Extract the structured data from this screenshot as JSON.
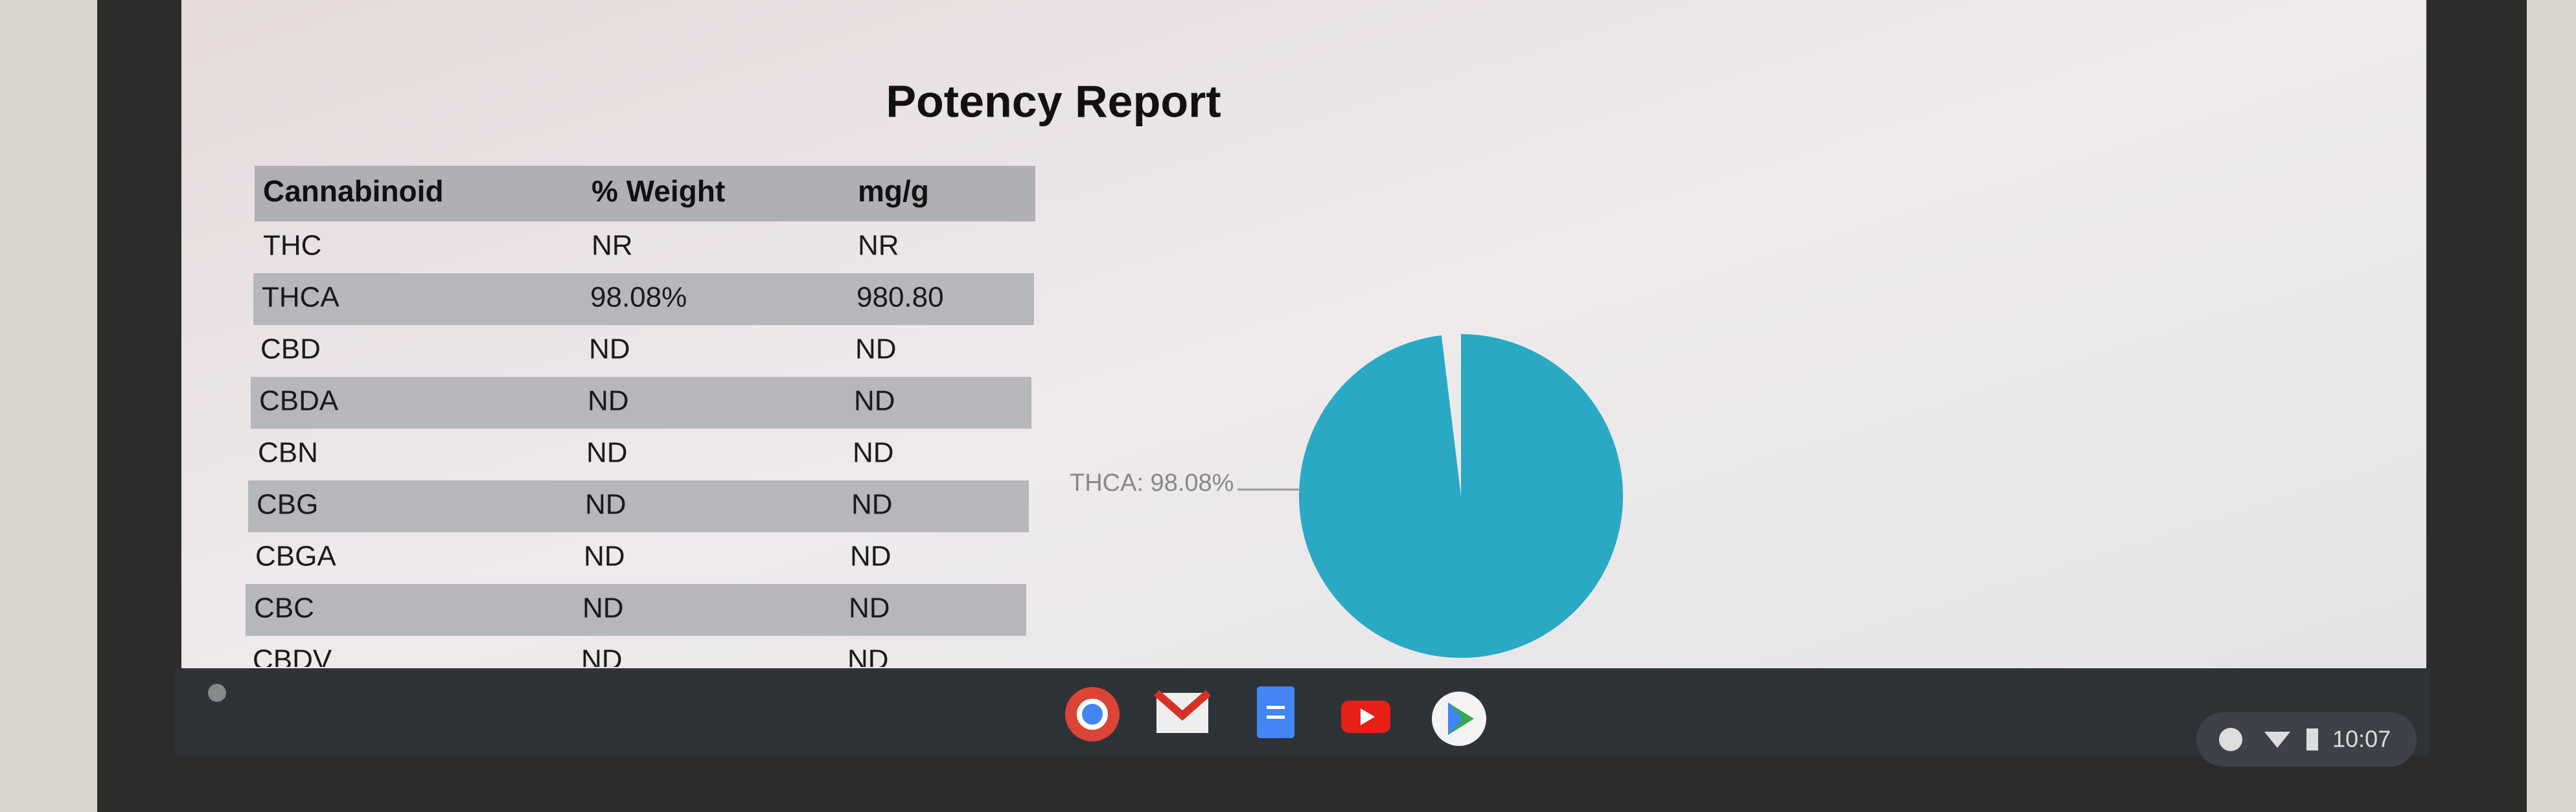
{
  "header": {
    "title": "Potency Report"
  },
  "table": {
    "columns": [
      "Cannabinoid",
      "% Weight",
      "mg/g"
    ],
    "rows": [
      [
        "THC",
        "NR",
        "NR"
      ],
      [
        "THCA",
        "98.08%",
        "980.80"
      ],
      [
        "CBD",
        "ND",
        "ND"
      ],
      [
        "CBDA",
        "ND",
        "ND"
      ],
      [
        "CBN",
        "ND",
        "ND"
      ],
      [
        "CBG",
        "ND",
        "ND"
      ],
      [
        "CBGA",
        "ND",
        "ND"
      ],
      [
        "CBC",
        "ND",
        "ND"
      ],
      [
        "CBDV",
        "ND",
        "ND"
      ]
    ]
  },
  "pie": {
    "slices": [
      {
        "label": "THCA: 98.08%",
        "value": 98.08,
        "color": "#2aa9c4"
      }
    ]
  },
  "shelf": {
    "time": "10:07"
  }
}
